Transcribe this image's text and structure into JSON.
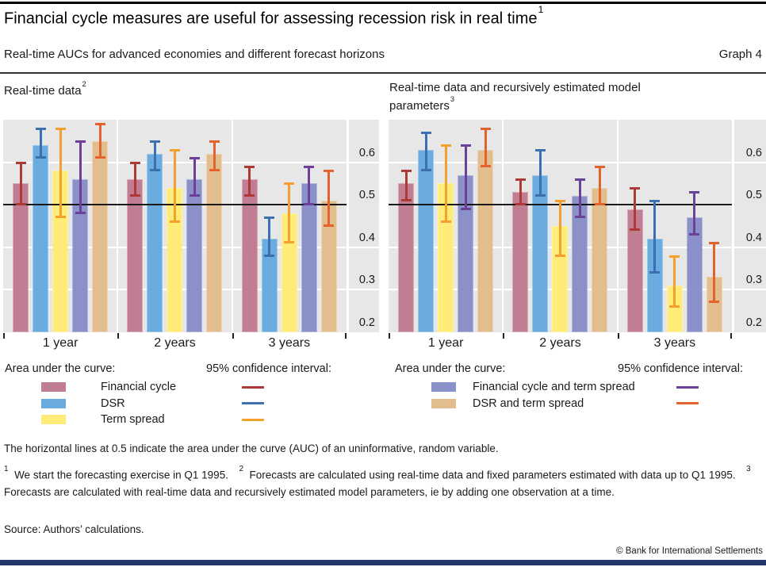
{
  "header": {
    "title": "Financial cycle measures are useful for assessing recession risk in real time",
    "title_sup": "1",
    "subtitle": "Real-time AUCs for advanced economies and different forecast horizons",
    "graph_label": "Graph 4"
  },
  "chart_data": [
    {
      "type": "bar",
      "title": "Real-time data",
      "title_lines": [
        "Real-time data"
      ],
      "title_sup": "2",
      "categories": [
        "1 year",
        "2 years",
        "3 years"
      ],
      "ylim": [
        0.2,
        0.7
      ],
      "yticks": [
        "0.6",
        "0.5",
        "0.4",
        "0.3",
        "0.2"
      ],
      "gridlines": [
        0.6,
        0.4,
        0.3
      ],
      "baseline": 0.5,
      "legend_position": "below",
      "series": [
        {
          "name": "Financial cycle",
          "color": "#c17e92",
          "ci_color": "#ae3a38",
          "values": [
            0.55,
            0.56,
            0.56
          ],
          "ci_low": [
            0.5,
            0.52,
            0.52
          ],
          "ci_high": [
            0.6,
            0.6,
            0.59
          ]
        },
        {
          "name": "DSR",
          "color": "#6aace0",
          "ci_color": "#3c6fb0",
          "values": [
            0.64,
            0.62,
            0.42
          ],
          "ci_low": [
            0.61,
            0.58,
            0.38
          ],
          "ci_high": [
            0.68,
            0.65,
            0.47
          ]
        },
        {
          "name": "Term spread",
          "color": "#ffeb78",
          "ci_color": "#f3a02c",
          "values": [
            0.58,
            0.54,
            0.48
          ],
          "ci_low": [
            0.47,
            0.46,
            0.41
          ],
          "ci_high": [
            0.68,
            0.63,
            0.55
          ]
        },
        {
          "name": "Financial cycle and term spread",
          "color": "#8a90c8",
          "ci_color": "#6c4099",
          "values": [
            0.56,
            0.56,
            0.55
          ],
          "ci_low": [
            0.48,
            0.52,
            0.5
          ],
          "ci_high": [
            0.65,
            0.61,
            0.59
          ]
        },
        {
          "name": "DSR and term spread",
          "color": "#e2bd8d",
          "ci_color": "#e4632c",
          "values": [
            0.65,
            0.62,
            0.51
          ],
          "ci_low": [
            0.61,
            0.58,
            0.45
          ],
          "ci_high": [
            0.69,
            0.65,
            0.58
          ]
        }
      ]
    },
    {
      "type": "bar",
      "title": "Real-time data and recursively estimated model parameters",
      "title_lines": [
        "Real-time data and recursively estimated model",
        "parameters"
      ],
      "title_sup": "3",
      "categories": [
        "1 year",
        "2 years",
        "3 years"
      ],
      "ylim": [
        0.2,
        0.7
      ],
      "yticks": [
        "0.6",
        "0.5",
        "0.4",
        "0.3",
        "0.2"
      ],
      "gridlines": [
        0.6,
        0.4,
        0.3
      ],
      "baseline": 0.5,
      "series": [
        {
          "name": "Financial cycle",
          "color": "#c17e92",
          "ci_color": "#ae3a38",
          "values": [
            0.55,
            0.53,
            0.49
          ],
          "ci_low": [
            0.51,
            0.5,
            0.44
          ],
          "ci_high": [
            0.58,
            0.56,
            0.54
          ]
        },
        {
          "name": "DSR",
          "color": "#6aace0",
          "ci_color": "#3c6fb0",
          "values": [
            0.63,
            0.57,
            0.42
          ],
          "ci_low": [
            0.58,
            0.52,
            0.34
          ],
          "ci_high": [
            0.67,
            0.63,
            0.51
          ]
        },
        {
          "name": "Term spread",
          "color": "#ffeb78",
          "ci_color": "#f3a02c",
          "values": [
            0.55,
            0.45,
            0.31
          ],
          "ci_low": [
            0.46,
            0.38,
            0.26
          ],
          "ci_high": [
            0.64,
            0.51,
            0.38
          ]
        },
        {
          "name": "Financial cycle and term spread",
          "color": "#8a90c8",
          "ci_color": "#6c4099",
          "values": [
            0.57,
            0.52,
            0.47
          ],
          "ci_low": [
            0.49,
            0.47,
            0.43
          ],
          "ci_high": [
            0.64,
            0.56,
            0.53
          ]
        },
        {
          "name": "DSR and term spread",
          "color": "#e2bd8d",
          "ci_color": "#e4632c",
          "values": [
            0.63,
            0.54,
            0.33
          ],
          "ci_low": [
            0.59,
            0.5,
            0.27
          ],
          "ci_high": [
            0.68,
            0.59,
            0.41
          ]
        }
      ]
    }
  ],
  "legends": {
    "left": {
      "auc_header": "Area under the curve:",
      "ci_header": "95% confidence interval:",
      "items": [
        {
          "label": "Financial cycle",
          "swatch": "#c17e92",
          "line": "#ae3a38"
        },
        {
          "label": "DSR",
          "swatch": "#6aace0",
          "line": "#3c6fb0"
        },
        {
          "label": "Term spread",
          "swatch": "#ffeb78",
          "line": "#f3a02c"
        }
      ]
    },
    "right": {
      "auc_header": "Area under the curve:",
      "ci_header": "95% confidence interval:",
      "items": [
        {
          "label": "Financial cycle and term spread",
          "swatch": "#8a90c8",
          "line": "#6c4099"
        },
        {
          "label": "DSR and term spread",
          "swatch": "#e2bd8d",
          "line": "#e4632c"
        }
      ]
    }
  },
  "note": {
    "text": "The horizontal lines at 0.5 indicate the area under the curve (AUC) of an uninformative, random variable."
  },
  "footnotes": [
    {
      "marker": "1",
      "text": "We start the forecasting exercise in Q1 1995."
    },
    {
      "marker": "2",
      "text": "Forecasts are calculated using real-time data and fixed parameters estimated with data up to Q1 1995."
    },
    {
      "marker": "3",
      "text": "Forecasts are calculated with real-time data and recursively estimated model parameters, ie by adding one observation at a time."
    }
  ],
  "source": {
    "text": "Source: Authors’ calculations."
  },
  "copyright": {
    "text": "© Bank for International Settlements"
  }
}
